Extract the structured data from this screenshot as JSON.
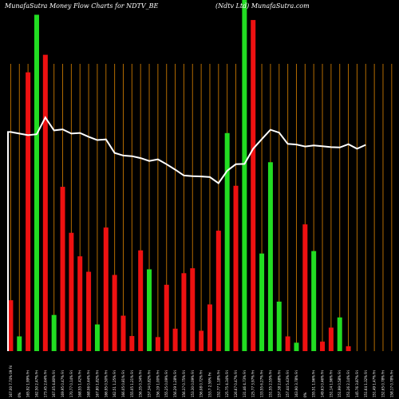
{
  "chart_data": {
    "type": "bar",
    "title_left": "MunafaSutra  Money Flow  Charts for NDTV_BE",
    "title_right": "(Ndtv   Ltd) MunafaSutra.com",
    "colors": {
      "background": "#000000",
      "up": "#22dd22",
      "down": "#ee1111",
      "gridline": "#b36b00",
      "line": "#ffffff"
    },
    "ylim": [
      0,
      100
    ],
    "line_ylim": [
      0,
      100
    ],
    "categories": [
      "167.00 7.74% 09 Fri",
      "0%",
      "165.92 1.99% Fri",
      "162.50 2.47% Fri",
      "173.45 2.64% Fri",
      "167.05 4.80% Fri",
      "169.95 0.47% Fri",
      "170.77 0.14% Fri",
      "168.55 1.42% Fri",
      "168.06 0.44% Fri",
      "167.80 1.82% Fri",
      "166.95 0.50% Fri",
      "162.51 1.25% Fri",
      "166.05 0.81% Fri",
      "155.05 1.21% Fri",
      "156.35 0.34% Fri",
      "157.34 0.82% Fri",
      "156.19 1.00% Fri",
      "155.25 0.09% Fri",
      "156.29 1.28% Fri",
      "156.37 0.75% Fri",
      "153.30 0.09% Fri",
      "156.08 0.72% Fri",
      "153.7 2.59% Fri",
      "152.77 1.18% Fri",
      "125.75 4.34% Fri",
      "126.67 0.47% Fri",
      "131.46 4.73% Fri",
      "125.77 3.97% Fri",
      "133.55 6.27% Fri",
      "151.55 2.55% Fri",
      "157.38 2.68% Fri",
      "157.44 5.43% Fri",
      "163.90 3.78% Fri",
      "0%",
      "155.51 1.96% Fri",
      "149.63 0.46% Fri",
      "151.14 1.96% Fri",
      "151.99 0.58% Fri",
      "151.26 2.14% Fri",
      "145.76 3.87% Fri",
      "151.64 1.32% Fri",
      "151.49 1.47% Fri",
      "152.65 0.78% Fri",
      "158.17 0.78% Fri"
    ],
    "directions": [
      "down",
      "up",
      "down",
      "up",
      "down",
      "up",
      "down",
      "down",
      "down",
      "down",
      "up",
      "down",
      "down",
      "down",
      "down",
      "down",
      "up",
      "down",
      "down",
      "down",
      "down",
      "down",
      "down",
      "down",
      "down",
      "up",
      "down",
      "up",
      "down",
      "up",
      "up",
      "up",
      "down",
      "up",
      "down",
      "up",
      "down",
      "down",
      "up",
      "down",
      "down",
      "down",
      "down",
      "down",
      "down"
    ],
    "values": [
      14.5,
      4.2,
      79.4,
      95.8,
      84.4,
      10.3,
      46.8,
      33.7,
      27.0,
      22.6,
      7.6,
      35.2,
      21.7,
      10.1,
      4.3,
      28.7,
      23.3,
      4.0,
      18.9,
      6.4,
      22.2,
      23.6,
      5.8,
      13.3,
      34.3,
      62.1,
      47.1,
      100,
      94.3,
      27.8,
      53.8,
      14.1,
      4.2,
      2.4,
      36.1,
      28.5,
      2.7,
      6.7,
      9.6,
      1.4,
      0,
      0,
      0,
      0,
      0
    ],
    "line": [
      65.5,
      65,
      64.5,
      64.8,
      70,
      66,
      66.3,
      65,
      65.2,
      64,
      63,
      63.2,
      59,
      58.2,
      58,
      57.4,
      56.5,
      57,
      55.5,
      53.8,
      52,
      51.8,
      51.7,
      51.5,
      49.6,
      53.5,
      55.5,
      55.6,
      60.3,
      63.3,
      66.2,
      65.3,
      61.8,
      61.6,
      61,
      61.3,
      61.1,
      60.8,
      60.7,
      61.7,
      60.3,
      61.5,
      0,
      0,
      0
    ]
  }
}
